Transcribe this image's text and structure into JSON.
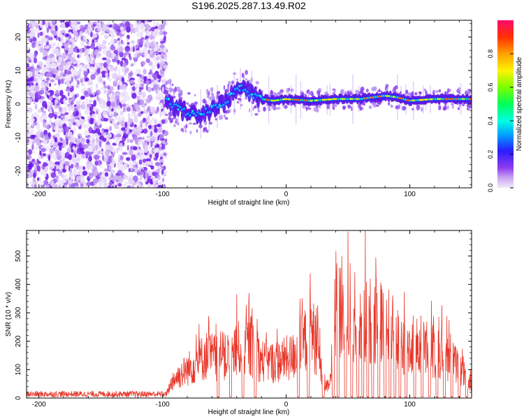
{
  "title": "S196.2025.287.13.49.R02",
  "chart_data": [
    {
      "type": "heatmap",
      "name": "spectrogram",
      "xlabel": "Height of straight line (km)",
      "ylabel": "Frequency (Hz)",
      "xlim": [
        -210,
        150
      ],
      "ylim": [
        -25,
        25
      ],
      "xticks": [
        -200,
        -100,
        0,
        100
      ],
      "yticks": [
        -20,
        -10,
        0,
        10,
        20
      ],
      "colorbar": {
        "label": "Normalized spectral amplitude",
        "range": [
          0,
          1
        ],
        "ticks": [
          0.0,
          0.2,
          0.4,
          0.6,
          0.8
        ]
      },
      "noise_region_x": [
        -210,
        -97
      ],
      "signal_track": [
        {
          "x": -97,
          "f": 2.0
        },
        {
          "x": -90,
          "f": -1.0
        },
        {
          "x": -80,
          "f": -2.5
        },
        {
          "x": -70,
          "f": -3.0
        },
        {
          "x": -60,
          "f": -1.5
        },
        {
          "x": -50,
          "f": 0.5
        },
        {
          "x": -40,
          "f": 4.0
        },
        {
          "x": -35,
          "f": 5.0
        },
        {
          "x": -30,
          "f": 3.5
        },
        {
          "x": -20,
          "f": 1.5
        },
        {
          "x": -10,
          "f": 1.0
        },
        {
          "x": 0,
          "f": 1.5
        },
        {
          "x": 20,
          "f": 1.0
        },
        {
          "x": 40,
          "f": 1.5
        },
        {
          "x": 60,
          "f": 1.5
        },
        {
          "x": 80,
          "f": 2.5
        },
        {
          "x": 90,
          "f": 2.0
        },
        {
          "x": 100,
          "f": 1.0
        },
        {
          "x": 120,
          "f": 1.5
        },
        {
          "x": 150,
          "f": 1.5
        }
      ]
    },
    {
      "type": "line",
      "name": "snr",
      "xlabel": "Height of straight line (km)",
      "ylabel": "SNR (10 * v/v)",
      "xlim": [
        -210,
        150
      ],
      "ylim": [
        0,
        590
      ],
      "xticks": [
        -200,
        -100,
        0,
        100
      ],
      "yticks": [
        0,
        100,
        200,
        300,
        400,
        500
      ],
      "color": "#e8392c",
      "envelope": [
        {
          "x": -210,
          "y": 20
        },
        {
          "x": -97,
          "y": 20
        },
        {
          "x": -92,
          "y": 100
        },
        {
          "x": -80,
          "y": 160
        },
        {
          "x": -65,
          "y": 240
        },
        {
          "x": -50,
          "y": 220
        },
        {
          "x": -40,
          "y": 270
        },
        {
          "x": -30,
          "y": 290
        },
        {
          "x": -20,
          "y": 210
        },
        {
          "x": -10,
          "y": 200
        },
        {
          "x": 5,
          "y": 230
        },
        {
          "x": 15,
          "y": 320
        },
        {
          "x": 20,
          "y": 380
        },
        {
          "x": 25,
          "y": 300
        },
        {
          "x": 30,
          "y": 80
        },
        {
          "x": 35,
          "y": 60
        },
        {
          "x": 40,
          "y": 460
        },
        {
          "x": 50,
          "y": 470
        },
        {
          "x": 60,
          "y": 440
        },
        {
          "x": 70,
          "y": 430
        },
        {
          "x": 80,
          "y": 420
        },
        {
          "x": 90,
          "y": 330
        },
        {
          "x": 100,
          "y": 290
        },
        {
          "x": 115,
          "y": 280
        },
        {
          "x": 125,
          "y": 270
        },
        {
          "x": 135,
          "y": 200
        },
        {
          "x": 145,
          "y": 120
        },
        {
          "x": 150,
          "y": 80
        }
      ],
      "spikes": [
        {
          "x": -40,
          "y": 365
        },
        {
          "x": -30,
          "y": 370
        },
        {
          "x": 18,
          "y": 470
        },
        {
          "x": 45,
          "y": 500
        },
        {
          "x": 64,
          "y": 600
        }
      ],
      "dropouts_x": [
        -55,
        -45,
        -35,
        -25,
        10,
        18,
        30,
        38,
        42,
        48,
        53,
        58,
        62,
        66,
        70,
        75,
        80,
        84,
        88,
        92,
        97,
        104,
        110,
        116,
        122,
        128,
        134,
        140,
        146
      ]
    }
  ]
}
